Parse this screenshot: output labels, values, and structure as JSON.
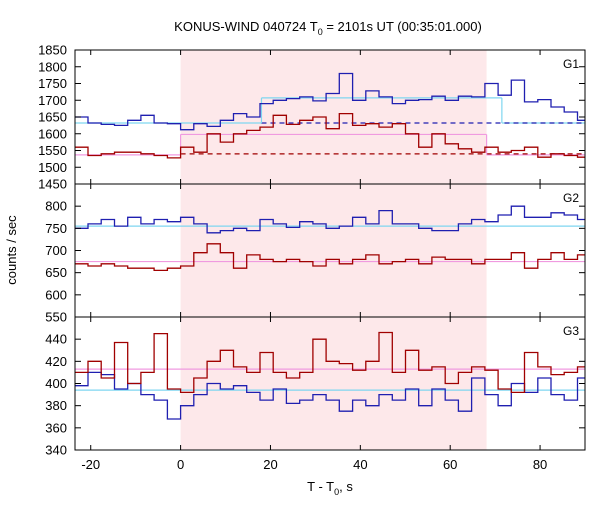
{
  "chart_data": {
    "type": "line",
    "title_parts": {
      "pre": "KONUS-WIND 040724 T",
      "sub": "0",
      "post": " = 2101s UT (00:35:01.000)"
    },
    "xlabel_parts": {
      "pre": "T - T",
      "sub": "0",
      "post": ", s"
    },
    "ylabel": "counts / sec",
    "xlim": [
      -23.5,
      90
    ],
    "xticks": [
      -20,
      0,
      20,
      40,
      60,
      80
    ],
    "grid": false,
    "bin_width": 2.944,
    "bin_start": -23.55,
    "highlight_interval": [
      0,
      68.1
    ],
    "colors": {
      "highlight": "#fde8ea",
      "series_blue": "#1f1fb0",
      "series_red": "#a00000",
      "bg_blue": "#7fd6f0",
      "bg_pink": "#f09ae0",
      "bg_red_dashed": "#a00000",
      "bg_blue_dashed": "#1f1fb0"
    },
    "panels": [
      {
        "label": "G1",
        "ylim": [
          1450,
          1850
        ],
        "yticks": [
          1450,
          1500,
          1550,
          1600,
          1650,
          1700,
          1750,
          1800,
          1850
        ],
        "series": [
          {
            "color_key": "series_blue",
            "values": [
              1650,
              1632,
              1628,
              1625,
              1640,
              1655,
              1632,
              1630,
              1612,
              1630,
              1622,
              1640,
              1660,
              1650,
              1690,
              1700,
              1705,
              1710,
              1698,
              1720,
              1780,
              1700,
              1728,
              1710,
              1690,
              1700,
              1702,
              1712,
              1700,
              1712,
              1710,
              1750,
              1715,
              1760,
              1695,
              1702,
              1680,
              1665,
              1640,
              1660,
              1640,
              1645,
              1630,
              1632
            ]
          },
          {
            "color_key": "series_red",
            "values": [
              1560,
              1535,
              1540,
              1545,
              1545,
              1540,
              1535,
              1528,
              1560,
              1545,
              1600,
              1575,
              1600,
              1610,
              1620,
              1655,
              1628,
              1640,
              1650,
              1615,
              1660,
              1625,
              1630,
              1620,
              1630,
              1600,
              1560,
              1600,
              1570,
              1555,
              1545,
              1560,
              1545,
              1550,
              1560,
              1530,
              1540,
              1535,
              1530,
              1520,
              1540,
              1530,
              1555,
              1540
            ]
          }
        ],
        "segments": [
          {
            "color_key": "bg_blue",
            "dashed": false,
            "x": [
              -23.5,
              18
            ],
            "y": 1632
          },
          {
            "color_key": "bg_blue",
            "dashed": false,
            "x": [
              18,
              71.5
            ],
            "y": 1707
          },
          {
            "color_key": "bg_blue",
            "dashed": false,
            "x": [
              71.5,
              90
            ],
            "y": 1632
          },
          {
            "color_key": "bg_blue_dashed",
            "dashed": true,
            "x": [
              18,
              90
            ],
            "y": 1632
          },
          {
            "color_key": "bg_pink",
            "dashed": false,
            "x": [
              -23.5,
              0
            ],
            "y": 1537
          },
          {
            "color_key": "bg_pink",
            "dashed": false,
            "x": [
              0,
              68.1
            ],
            "y": 1598
          },
          {
            "color_key": "bg_pink",
            "dashed": false,
            "x": [
              68.1,
              90
            ],
            "y": 1537
          },
          {
            "color_key": "bg_red_dashed",
            "dashed": true,
            "x": [
              0,
              90
            ],
            "y": 1540
          }
        ]
      },
      {
        "label": "G2",
        "ylim": [
          550,
          850
        ],
        "yticks": [
          550,
          600,
          650,
          700,
          750,
          800
        ],
        "series": [
          {
            "color_key": "series_blue",
            "values": [
              750,
              760,
              770,
              755,
              775,
              760,
              770,
              765,
              775,
              760,
              740,
              745,
              750,
              745,
              770,
              760,
              752,
              765,
              760,
              750,
              755,
              775,
              760,
              790,
              760,
              760,
              750,
              745,
              745,
              760,
              770,
              765,
              780,
              800,
              775,
              775,
              785,
              780,
              770,
              760,
              755,
              765,
              740,
              760
            ]
          },
          {
            "color_key": "series_red",
            "values": [
              670,
              665,
              670,
              665,
              660,
              660,
              655,
              660,
              665,
              695,
              715,
              695,
              660,
              690,
              680,
              675,
              680,
              675,
              665,
              680,
              670,
              680,
              690,
              670,
              675,
              680,
              670,
              685,
              680,
              680,
              670,
              680,
              680,
              695,
              660,
              680,
              695,
              680,
              690,
              630,
              660,
              680,
              675,
              685
            ]
          }
        ],
        "segments": [
          {
            "color_key": "bg_blue",
            "dashed": false,
            "x": [
              -23.5,
              90
            ],
            "y": 755
          },
          {
            "color_key": "bg_pink",
            "dashed": false,
            "x": [
              -23.5,
              90
            ],
            "y": 675
          }
        ]
      },
      {
        "label": "G3",
        "ylim": [
          340,
          460
        ],
        "yticks": [
          340,
          360,
          380,
          400,
          420,
          440
        ],
        "series": [
          {
            "color_key": "series_blue",
            "values": [
              398,
              410,
              408,
              395,
              400,
              390,
              385,
              368,
              380,
              390,
              400,
              395,
              398,
              392,
              385,
              395,
              382,
              385,
              390,
              385,
              375,
              385,
              380,
              390,
              385,
              395,
              380,
              395,
              385,
              375,
              405,
              390,
              380,
              400,
              392,
              405,
              390,
              385,
              405,
              410,
              400,
              392,
              398,
              390
            ]
          },
          {
            "color_key": "series_red",
            "values": [
              410,
              420,
              405,
              437,
              400,
              410,
              445,
              395,
              392,
              405,
              420,
              430,
              415,
              410,
              428,
              410,
              405,
              410,
              440,
              420,
              418,
              412,
              420,
              446,
              410,
              430,
              412,
              415,
              400,
              410,
              415,
              412,
              395,
              392,
              428,
              415,
              408,
              410,
              415,
              420,
              395,
              410,
              405,
              420
            ]
          }
        ],
        "segments": [
          {
            "color_key": "bg_pink",
            "dashed": false,
            "x": [
              -23.5,
              90
            ],
            "y": 413
          },
          {
            "color_key": "bg_blue",
            "dashed": false,
            "x": [
              -23.5,
              90
            ],
            "y": 394
          }
        ]
      }
    ]
  }
}
